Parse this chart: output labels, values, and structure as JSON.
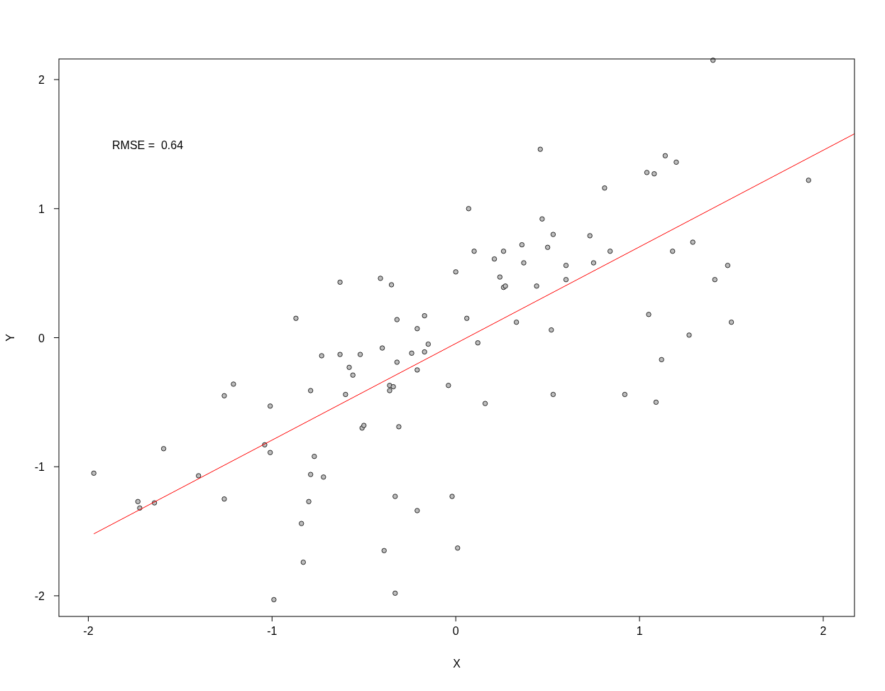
{
  "chart_data": {
    "type": "scatter",
    "xlabel": "X",
    "ylabel": "Y",
    "xlim": [
      -2.16,
      2.17
    ],
    "ylim": [
      -2.16,
      2.16
    ],
    "xticks": [
      -2,
      -1,
      0,
      1,
      2
    ],
    "yticks": [
      -2,
      -1,
      0,
      1,
      2
    ],
    "grid": false,
    "annotations": [
      "RMSE =  0.64"
    ],
    "series": [
      {
        "color": "#bebebe",
        "marker": "circle",
        "x": [
          -1.97,
          -1.73,
          -1.72,
          -1.64,
          -1.59,
          -1.4,
          -1.26,
          -1.21,
          -1.26,
          -1.04,
          -1.01,
          -1.01,
          -0.99,
          -0.87,
          -0.84,
          -0.83,
          -0.8,
          -0.79,
          -0.79,
          -0.77,
          -0.73,
          -0.72,
          -0.63,
          -0.63,
          -0.6,
          -0.58,
          -0.56,
          -0.52,
          -0.51,
          -0.5,
          -0.41,
          -0.4,
          -0.39,
          -0.36,
          -0.36,
          -0.35,
          -0.34,
          -0.33,
          -0.33,
          -0.32,
          -0.32,
          -0.31,
          -0.24,
          -0.21,
          -0.21,
          -0.21,
          -0.17,
          -0.17,
          -0.15,
          -0.04,
          -0.02,
          0,
          0.01,
          0.06,
          0.07,
          0.1,
          0.12,
          0.16,
          0.21,
          0.24,
          0.26,
          0.26,
          0.27,
          0.33,
          0.36,
          0.37,
          0.44,
          0.46,
          0.47,
          0.5,
          0.52,
          0.53,
          0.53,
          0.6,
          0.6,
          0.73,
          0.75,
          0.81,
          0.84,
          0.92,
          1.04,
          1.05,
          1.08,
          1.09,
          1.12,
          1.14,
          1.18,
          1.2,
          1.27,
          1.29,
          1.4,
          1.41,
          1.48,
          1.5,
          1.92
        ],
        "values": [
          -1.05,
          -1.27,
          -1.32,
          -1.28,
          -0.86,
          -1.07,
          -0.45,
          -0.36,
          -1.25,
          -0.83,
          -0.53,
          -0.89,
          -2.03,
          0.15,
          -1.44,
          -1.74,
          -1.27,
          -0.41,
          -1.06,
          -0.92,
          -0.14,
          -1.08,
          0.43,
          -0.13,
          -0.44,
          -0.23,
          -0.29,
          -0.13,
          -0.7,
          -0.68,
          0.46,
          -0.08,
          -1.65,
          -0.41,
          -0.37,
          0.41,
          -0.38,
          -1.98,
          -1.23,
          -0.19,
          0.14,
          -0.69,
          -0.12,
          -0.25,
          0.07,
          -1.34,
          0.17,
          -0.11,
          -0.05,
          -0.37,
          -1.23,
          0.51,
          -1.63,
          0.15,
          1,
          0.67,
          -0.04,
          -0.51,
          0.61,
          0.47,
          0.67,
          0.39,
          0.4,
          0.12,
          0.72,
          0.58,
          0.4,
          1.46,
          0.92,
          0.7,
          0.06,
          0.8,
          -0.44,
          0.56,
          0.45,
          0.79,
          0.58,
          1.16,
          0.67,
          -0.44,
          1.28,
          0.18,
          1.27,
          -0.5,
          -0.17,
          1.41,
          0.67,
          1.36,
          0.02,
          0.74,
          2.15,
          0.45,
          0.56,
          0.12,
          1.22
        ]
      },
      {
        "type": "line",
        "color": "#ff0000",
        "x": [
          -1.97,
          2.17
        ],
        "values": [
          -1.52,
          1.58
        ]
      }
    ]
  }
}
